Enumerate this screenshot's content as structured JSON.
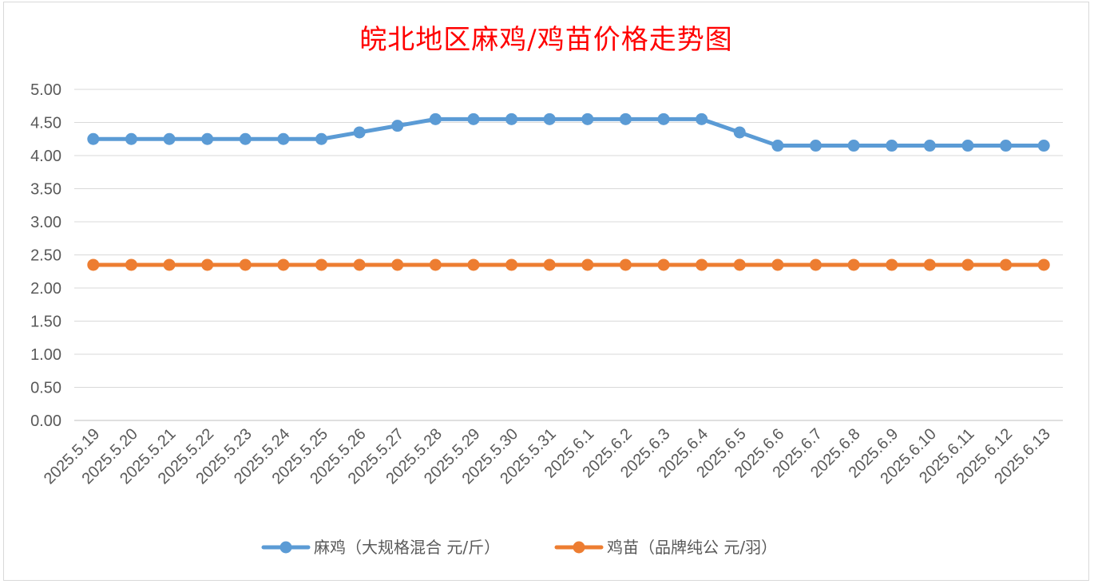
{
  "chart_data": {
    "type": "line",
    "title": "皖北地区麻鸡/鸡苗价格走势图",
    "title_color": "#ff0000",
    "categories": [
      "2025.5.19",
      "2025.5.20",
      "2025.5.21",
      "2025.5.22",
      "2025.5.23",
      "2025.5.24",
      "2025.5.25",
      "2025.5.26",
      "2025.5.27",
      "2025.5.28",
      "2025.5.29",
      "2025.5.30",
      "2025.5.31",
      "2025.6.1",
      "2025.6.2",
      "2025.6.3",
      "2025.6.4",
      "2025.6.5",
      "2025.6.6",
      "2025.6.7",
      "2025.6.8",
      "2025.6.9",
      "2025.6.10",
      "2025.6.11",
      "2025.6.12",
      "2025.6.13"
    ],
    "series": [
      {
        "name": "麻鸡（大规格混合 元/斤）",
        "color": "#5b9bd5",
        "values": [
          4.25,
          4.25,
          4.25,
          4.25,
          4.25,
          4.25,
          4.25,
          4.35,
          4.45,
          4.55,
          4.55,
          4.55,
          4.55,
          4.55,
          4.55,
          4.55,
          4.55,
          4.35,
          4.15,
          4.15,
          4.15,
          4.15,
          4.15,
          4.15,
          4.15,
          4.15
        ]
      },
      {
        "name": "鸡苗（品牌纯公 元/羽）",
        "color": "#ed7d31",
        "values": [
          2.35,
          2.35,
          2.35,
          2.35,
          2.35,
          2.35,
          2.35,
          2.35,
          2.35,
          2.35,
          2.35,
          2.35,
          2.35,
          2.35,
          2.35,
          2.35,
          2.35,
          2.35,
          2.35,
          2.35,
          2.35,
          2.35,
          2.35,
          2.35,
          2.35,
          2.35
        ]
      }
    ],
    "y_ticks": [
      "0.00",
      "0.50",
      "1.00",
      "1.50",
      "2.00",
      "2.50",
      "3.00",
      "3.50",
      "4.00",
      "4.50",
      "5.00"
    ],
    "ylim": [
      0,
      5
    ],
    "grid": true,
    "legend_position": "bottom"
  }
}
